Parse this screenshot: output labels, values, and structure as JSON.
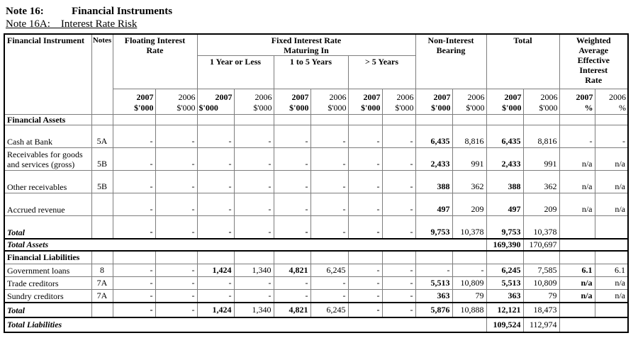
{
  "page": {
    "title1_prefix": "Note 16:",
    "title1_text": "Financial Instruments",
    "title2": "Note 16A:    Interest Rate Risk"
  },
  "table": {
    "header": {
      "financial_instrument": "Financial Instrument",
      "notes": "Notes",
      "groups": {
        "floating": "Floating Interest Rate",
        "fixed": "Fixed Interest Rate Maturing In",
        "maturities": [
          "1 Year or Less",
          "1 to 5 Years",
          "> 5 Years"
        ],
        "non_interest": "Non-Interest Bearing",
        "total": "Total",
        "weighted": "Weighted Average Effective Interest Rate"
      },
      "columns": [
        {
          "year": "2007",
          "unit": "$'000",
          "bold": true
        },
        {
          "year": "2006",
          "unit": "$'000",
          "bold": false
        },
        {
          "year": "2007",
          "unit": "$'000",
          "bold": true,
          "unit_align": "left"
        },
        {
          "year": "2006",
          "unit": "$'000",
          "bold": false
        },
        {
          "year": "2007",
          "unit": "$'000",
          "bold": true
        },
        {
          "year": "2006",
          "unit": "$'000",
          "bold": false
        },
        {
          "year": "2007",
          "unit": "$'000",
          "bold": true
        },
        {
          "year": "2006",
          "unit": "$'000",
          "bold": false
        },
        {
          "year": "2007",
          "unit": "$'000",
          "bold": true
        },
        {
          "year": "2006",
          "unit": "$'000",
          "bold": false
        },
        {
          "year": "2007",
          "unit": "$'000",
          "bold": true
        },
        {
          "year": "2006",
          "unit": "$'000",
          "bold": false
        },
        {
          "year": "2007",
          "unit": "%",
          "bold": true
        },
        {
          "year": "2006",
          "unit": "%",
          "bold": false
        }
      ]
    },
    "rows": [
      {
        "name": "financial-assets-section",
        "type": "section",
        "label": "Financial Assets",
        "notes": "",
        "values": [
          "",
          "",
          "",
          "",
          "",
          "",
          "",
          "",
          "",
          "",
          "",
          "",
          "",
          ""
        ],
        "bold": [],
        "cls": "r-sec-a",
        "thick": false
      },
      {
        "name": "cash-at-bank",
        "type": "data",
        "label": "Cash at Bank",
        "notes": "5A",
        "values": [
          "-",
          "-",
          "-",
          "-",
          "-",
          "-",
          "-",
          "-",
          "6,435",
          "8,816",
          "6,435",
          "8,816",
          "-",
          "-"
        ],
        "bold": [
          8,
          10
        ],
        "cls": "r-tall",
        "thick": false
      },
      {
        "name": "receivables-goods-services",
        "type": "data",
        "label": "Receivables for goods and services (gross)",
        "notes": "5B",
        "values": [
          "-",
          "-",
          "-",
          "-",
          "-",
          "-",
          "-",
          "-",
          "2,433",
          "991",
          "2,433",
          "991",
          "n/a",
          "n/a"
        ],
        "bold": [
          8,
          10
        ],
        "cls": "r-tall",
        "thick": false
      },
      {
        "name": "other-receivables",
        "type": "data",
        "label": "Other receivables",
        "notes": "5B",
        "values": [
          "-",
          "-",
          "-",
          "-",
          "-",
          "-",
          "-",
          "-",
          "388",
          "362",
          "388",
          "362",
          "n/a",
          "n/a"
        ],
        "bold": [
          8,
          10
        ],
        "cls": "r-tall",
        "thick": false
      },
      {
        "name": "accrued-revenue",
        "type": "data",
        "label": "Accrued revenue",
        "notes": "",
        "values": [
          "-",
          "-",
          "-",
          "-",
          "-",
          "-",
          "-",
          "-",
          "497",
          "209",
          "497",
          "209",
          "n/a",
          "n/a"
        ],
        "bold": [
          8,
          10
        ],
        "cls": "r-tall",
        "thick": false
      },
      {
        "name": "assets-subtotal",
        "type": "total",
        "label": "Total",
        "notes": "",
        "values": [
          "-",
          "-",
          "-",
          "-",
          "-",
          "-",
          "-",
          "-",
          "9,753",
          "10,378",
          "9,753",
          "10,378",
          "",
          ""
        ],
        "bold": [
          0,
          2,
          4,
          6,
          8,
          10
        ],
        "cls": "r-tall",
        "thick": true
      },
      {
        "name": "total-assets",
        "type": "grand",
        "label": "Total Assets",
        "values": [
          "169,390",
          "170,697"
        ],
        "bold": [
          0
        ],
        "cls": "r-grand",
        "thick": true
      },
      {
        "name": "financial-liabilities-section",
        "type": "section",
        "label": "Financial Liabilities",
        "notes": "",
        "values": [
          "",
          "",
          "",
          "",
          "",
          "",
          "",
          "",
          "",
          "",
          "",
          "",
          "",
          ""
        ],
        "bold": [],
        "cls": "r-sec-l",
        "thick": false
      },
      {
        "name": "government-loans",
        "type": "data",
        "label": "Government loans",
        "notes": "8",
        "values": [
          "-",
          "-",
          "1,424",
          "1,340",
          "4,821",
          "6,245",
          "-",
          "-",
          "-",
          "-",
          "6,245",
          "7,585",
          "6.1",
          "6.1"
        ],
        "bold": [
          2,
          4,
          10,
          12
        ],
        "cls": "r-short",
        "thick": false
      },
      {
        "name": "trade-creditors",
        "type": "data",
        "label": "Trade creditors",
        "notes": "7A",
        "values": [
          "-",
          "-",
          "-",
          "-",
          "-",
          "-",
          "-",
          "-",
          "5,513",
          "10,809",
          "5,513",
          "10,809",
          "n/a",
          "n/a"
        ],
        "bold": [
          8,
          10,
          12
        ],
        "cls": "r-short",
        "thick": false
      },
      {
        "name": "sundry-creditors",
        "type": "data",
        "label": "Sundry creditors",
        "notes": "7A",
        "values": [
          "-",
          "-",
          "-",
          "-",
          "-",
          "-",
          "-",
          "-",
          "363",
          "79",
          "363",
          "79",
          "n/a",
          "n/a"
        ],
        "bold": [
          8,
          10,
          12
        ],
        "cls": "r-short",
        "thick": true
      },
      {
        "name": "liabilities-subtotal",
        "type": "total",
        "label": "Total",
        "notes": "",
        "values": [
          "-",
          "-",
          "1,424",
          "1,340",
          "4,821",
          "6,245",
          "-",
          "-",
          "5,876",
          "10,888",
          "12,121",
          "18,473",
          "",
          ""
        ],
        "bold": [
          0,
          2,
          4,
          6,
          8,
          10
        ],
        "cls": "r-stotal",
        "thick": true
      },
      {
        "name": "total-liabilities",
        "type": "grand",
        "label": "Total Liabilities",
        "values": [
          "109,524",
          "112,974"
        ],
        "bold": [
          0
        ],
        "cls": "r-grandl",
        "thick": false
      }
    ]
  }
}
